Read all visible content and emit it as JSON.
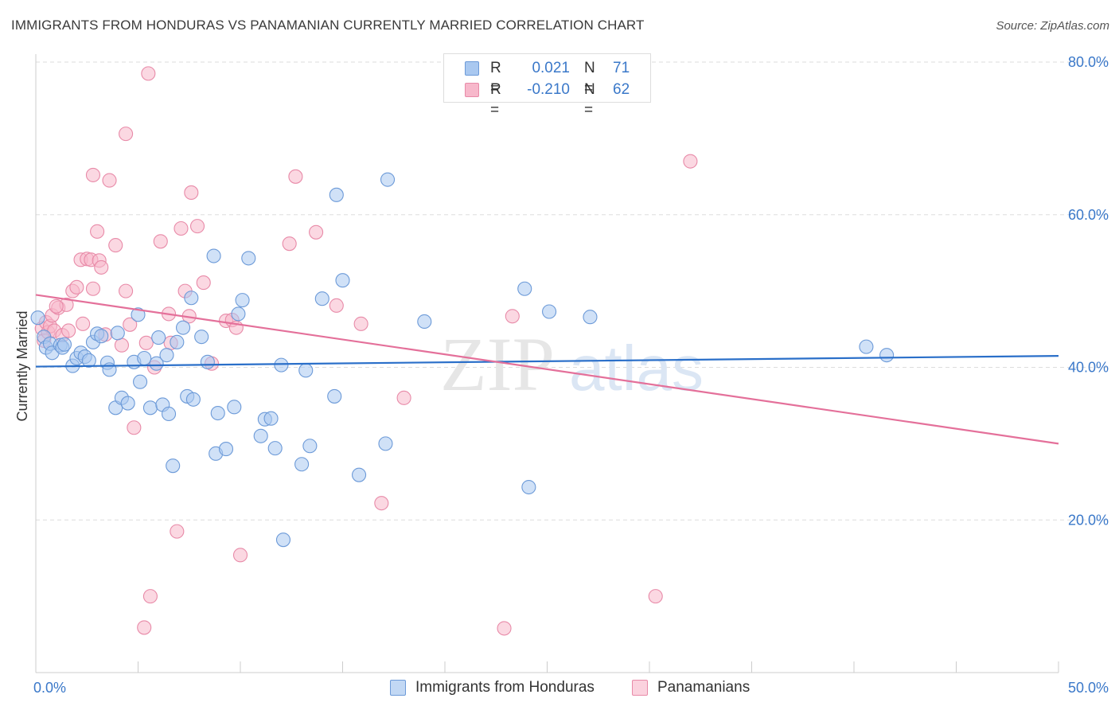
{
  "title": "IMMIGRANTS FROM HONDURAS VS PANAMANIAN CURRENTLY MARRIED CORRELATION CHART",
  "source": "Source: ZipAtlas.com",
  "watermark": {
    "zip": "ZIP",
    "atlas": "atlas"
  },
  "legend_top": [
    {
      "r_label": "R =",
      "r_value": "0.021",
      "n_label": "N =",
      "n_value": "71"
    },
    {
      "r_label": "R =",
      "r_value": "-0.210",
      "n_label": "N =",
      "n_value": "62"
    }
  ],
  "legend_bottom": [
    {
      "label": "Immigrants from Honduras"
    },
    {
      "label": "Panamanians"
    }
  ],
  "colors": {
    "blue_fill": "#a9c8f0",
    "blue_stroke": "#6c9ad8",
    "blue_line": "#2a6fc9",
    "pink_fill": "#f7b8cb",
    "pink_stroke": "#e88aa8",
    "pink_line": "#e4709a",
    "tick_text": "#3a78c9",
    "grid": "#dddddd"
  },
  "chart_data": {
    "type": "scatter",
    "title": "IMMIGRANTS FROM HONDURAS VS PANAMANIAN CURRENTLY MARRIED CORRELATION CHART",
    "xlabel": "",
    "ylabel": "Currently Married",
    "xlim": [
      0,
      50
    ],
    "ylim": [
      0,
      80
    ],
    "x_tick_labels": [
      {
        "value": 0,
        "label": "0.0%"
      },
      {
        "value": 50,
        "label": "50.0%"
      }
    ],
    "y_tick_labels": [
      {
        "value": 20,
        "label": "20.0%"
      },
      {
        "value": 40,
        "label": "40.0%"
      },
      {
        "value": 60,
        "label": "60.0%"
      },
      {
        "value": 80,
        "label": "80.0%"
      }
    ],
    "grid": true,
    "legend_position": "bottom",
    "series": [
      {
        "name": "Immigrants from Honduras",
        "color": "#a9c8f0",
        "trend": {
          "x": [
            0,
            50
          ],
          "y": [
            40.1,
            41.5
          ]
        },
        "points": [
          [
            0.1,
            46.5
          ],
          [
            0.4,
            44.0
          ],
          [
            0.5,
            42.6
          ],
          [
            0.7,
            43.1
          ],
          [
            0.8,
            41.9
          ],
          [
            1.2,
            42.9
          ],
          [
            1.3,
            42.6
          ],
          [
            1.4,
            43.0
          ],
          [
            1.8,
            40.2
          ],
          [
            2.0,
            41.2
          ],
          [
            2.2,
            41.9
          ],
          [
            2.4,
            41.4
          ],
          [
            2.6,
            40.9
          ],
          [
            2.8,
            43.3
          ],
          [
            3.0,
            44.4
          ],
          [
            3.2,
            44.1
          ],
          [
            3.5,
            40.6
          ],
          [
            3.6,
            39.7
          ],
          [
            3.9,
            34.7
          ],
          [
            4.0,
            44.5
          ],
          [
            4.2,
            36.0
          ],
          [
            4.5,
            35.3
          ],
          [
            4.8,
            40.7
          ],
          [
            5.0,
            46.9
          ],
          [
            5.1,
            38.1
          ],
          [
            5.3,
            41.2
          ],
          [
            5.6,
            34.7
          ],
          [
            5.9,
            40.5
          ],
          [
            6.0,
            43.9
          ],
          [
            6.2,
            35.1
          ],
          [
            6.4,
            41.6
          ],
          [
            6.5,
            33.9
          ],
          [
            6.7,
            27.1
          ],
          [
            6.9,
            43.3
          ],
          [
            7.2,
            45.2
          ],
          [
            7.4,
            36.2
          ],
          [
            7.6,
            49.1
          ],
          [
            7.7,
            35.8
          ],
          [
            8.1,
            44.0
          ],
          [
            8.4,
            40.7
          ],
          [
            8.7,
            54.6
          ],
          [
            8.8,
            28.7
          ],
          [
            8.9,
            34.0
          ],
          [
            9.3,
            29.3
          ],
          [
            9.7,
            34.8
          ],
          [
            9.9,
            47.0
          ],
          [
            10.1,
            48.8
          ],
          [
            10.4,
            54.3
          ],
          [
            11.0,
            31.0
          ],
          [
            11.2,
            33.2
          ],
          [
            11.5,
            33.3
          ],
          [
            11.7,
            29.4
          ],
          [
            12.0,
            40.3
          ],
          [
            12.1,
            17.4
          ],
          [
            13.0,
            27.3
          ],
          [
            13.2,
            39.6
          ],
          [
            13.4,
            29.7
          ],
          [
            14.0,
            49.0
          ],
          [
            14.6,
            36.2
          ],
          [
            14.7,
            62.6
          ],
          [
            15.0,
            51.4
          ],
          [
            15.8,
            25.9
          ],
          [
            17.1,
            30.0
          ],
          [
            17.2,
            64.6
          ],
          [
            19.0,
            46.0
          ],
          [
            24.1,
            24.3
          ],
          [
            23.9,
            50.3
          ],
          [
            25.1,
            47.3
          ],
          [
            27.1,
            46.6
          ],
          [
            40.6,
            42.7
          ],
          [
            41.6,
            41.6
          ]
        ]
      },
      {
        "name": "Panamanians",
        "color": "#f7b8cb",
        "trend": {
          "x": [
            0,
            50
          ],
          "y": [
            49.5,
            30.0
          ]
        },
        "points": [
          [
            0.3,
            45.1
          ],
          [
            0.4,
            43.5
          ],
          [
            0.5,
            45.9
          ],
          [
            0.6,
            44.6
          ],
          [
            0.7,
            45.4
          ],
          [
            0.8,
            46.8
          ],
          [
            0.9,
            44.8
          ],
          [
            1.1,
            47.8
          ],
          [
            1.3,
            44.2
          ],
          [
            1.5,
            48.2
          ],
          [
            1.6,
            44.8
          ],
          [
            1.8,
            50.0
          ],
          [
            2.0,
            50.5
          ],
          [
            2.2,
            54.1
          ],
          [
            2.3,
            45.7
          ],
          [
            2.5,
            54.2
          ],
          [
            2.7,
            54.1
          ],
          [
            2.8,
            50.3
          ],
          [
            2.8,
            65.2
          ],
          [
            3.0,
            57.8
          ],
          [
            3.1,
            54.0
          ],
          [
            3.2,
            53.1
          ],
          [
            3.4,
            44.3
          ],
          [
            3.6,
            64.5
          ],
          [
            3.9,
            56.0
          ],
          [
            4.2,
            42.9
          ],
          [
            4.4,
            70.6
          ],
          [
            4.4,
            50.0
          ],
          [
            4.6,
            45.6
          ],
          [
            4.8,
            32.1
          ],
          [
            5.3,
            5.9
          ],
          [
            5.4,
            43.2
          ],
          [
            5.5,
            78.5
          ],
          [
            5.8,
            40.0
          ],
          [
            6.1,
            56.5
          ],
          [
            6.5,
            47.0
          ],
          [
            6.6,
            43.2
          ],
          [
            6.9,
            18.5
          ],
          [
            7.1,
            58.2
          ],
          [
            7.3,
            50.0
          ],
          [
            7.6,
            62.9
          ],
          [
            7.5,
            46.7
          ],
          [
            7.9,
            58.5
          ],
          [
            8.2,
            51.1
          ],
          [
            8.6,
            40.5
          ],
          [
            9.3,
            46.1
          ],
          [
            9.6,
            46.2
          ],
          [
            9.8,
            45.2
          ],
          [
            10.0,
            15.4
          ],
          [
            12.4,
            56.2
          ],
          [
            12.7,
            65.0
          ],
          [
            13.7,
            57.7
          ],
          [
            14.7,
            48.1
          ],
          [
            15.9,
            45.7
          ],
          [
            16.9,
            22.2
          ],
          [
            18.0,
            36.0
          ],
          [
            22.9,
            5.8
          ],
          [
            23.3,
            46.7
          ],
          [
            30.3,
            10.0
          ],
          [
            32.0,
            67.0
          ],
          [
            5.6,
            10.0
          ],
          [
            1.0,
            48.0
          ]
        ]
      }
    ]
  }
}
